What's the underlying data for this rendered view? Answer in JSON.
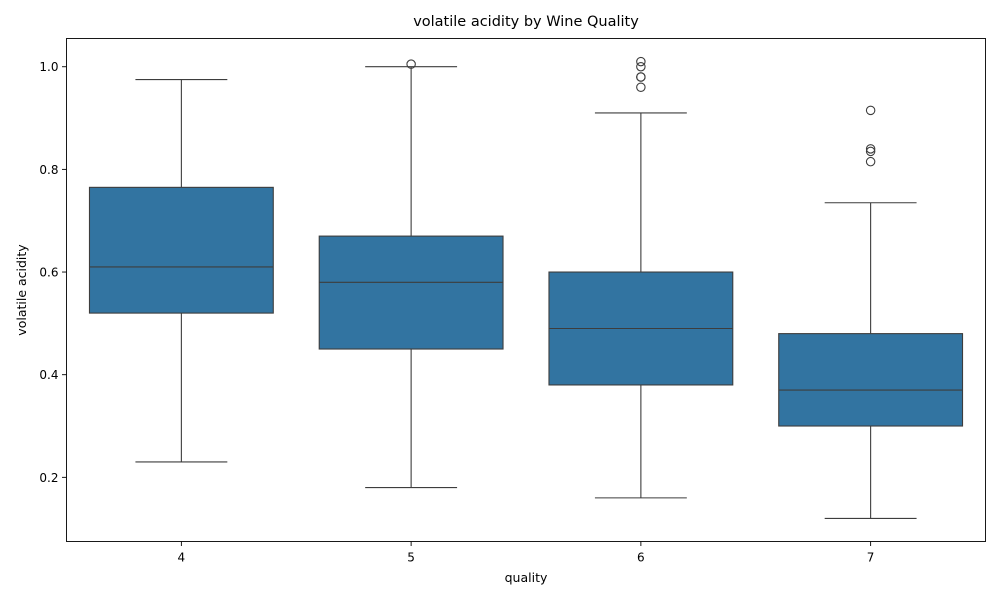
{
  "chart_data": {
    "type": "box",
    "title": "volatile acidity by Wine Quality",
    "xlabel": "quality",
    "ylabel": "volatile acidity",
    "ylim": [
      0.075,
      1.055
    ],
    "yticks": [
      "0.2",
      "0.4",
      "0.6",
      "0.8",
      "1.0"
    ],
    "categories": [
      "4",
      "5",
      "6",
      "7"
    ],
    "box_color": "#3274a1",
    "line_color": "#3d3d3d",
    "boxes": [
      {
        "category": "4",
        "whisker_low": 0.23,
        "q1": 0.52,
        "median": 0.61,
        "q3": 0.765,
        "whisker_high": 0.975,
        "outliers": []
      },
      {
        "category": "5",
        "whisker_low": 0.18,
        "q1": 0.45,
        "median": 0.58,
        "q3": 0.67,
        "whisker_high": 1.0,
        "outliers": [
          1.005
        ]
      },
      {
        "category": "6",
        "whisker_low": 0.16,
        "q1": 0.38,
        "median": 0.49,
        "q3": 0.6,
        "whisker_high": 0.91,
        "outliers": [
          1.01,
          1.0,
          0.98,
          0.98,
          0.96
        ]
      },
      {
        "category": "7",
        "whisker_low": 0.12,
        "q1": 0.3,
        "median": 0.37,
        "q3": 0.48,
        "whisker_high": 0.735,
        "outliers": [
          0.915,
          0.84,
          0.835,
          0.815
        ]
      }
    ]
  }
}
